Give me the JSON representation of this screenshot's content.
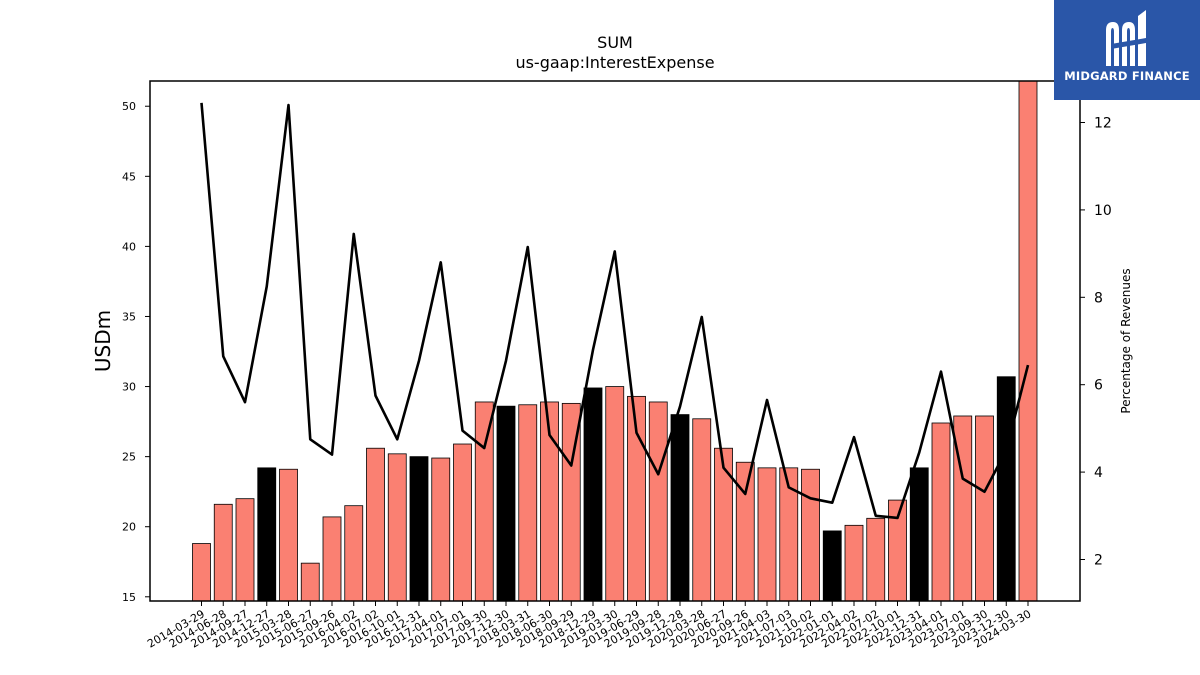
{
  "chart_data": {
    "type": "bar",
    "title": "SUM",
    "subtitle": "us-gaap:InterestExpense",
    "ylabel": "USDm",
    "y2label": "Percentage of Revenues",
    "ylim": [
      14.7,
      51.8
    ],
    "y2lim": [
      1.05,
      12.95
    ],
    "yticks": [
      15,
      20,
      25,
      30,
      35,
      40,
      45,
      50
    ],
    "y2ticks": [
      2,
      4,
      6,
      8,
      10,
      12
    ],
    "grid": false,
    "categories": [
      "2014-03-29",
      "2014-06-28",
      "2014-09-27",
      "2014-12-27",
      "2015-03-28",
      "2015-06-27",
      "2015-09-26",
      "2016-04-02",
      "2016-07-02",
      "2016-10-01",
      "2016-12-31",
      "2017-04-01",
      "2017-07-01",
      "2017-09-30",
      "2017-12-30",
      "2018-03-31",
      "2018-06-30",
      "2018-09-29",
      "2018-12-29",
      "2019-03-30",
      "2019-06-29",
      "2019-09-28",
      "2019-12-28",
      "2020-03-28",
      "2020-06-27",
      "2020-09-26",
      "2021-04-03",
      "2021-07-03",
      "2021-10-02",
      "2022-01-01",
      "2022-04-02",
      "2022-07-02",
      "2022-10-01",
      "2022-12-31",
      "2023-04-01",
      "2023-07-01",
      "2023-09-30",
      "2023-12-30",
      "2024-03-30"
    ],
    "series": [
      {
        "type": "bar",
        "values": [
          18.8,
          21.6,
          22.0,
          24.2,
          24.1,
          17.4,
          20.7,
          21.5,
          25.6,
          25.2,
          25.0,
          24.9,
          25.9,
          28.9,
          28.6,
          28.7,
          28.9,
          28.8,
          29.9,
          30.0,
          29.3,
          28.9,
          28.0,
          27.7,
          25.6,
          24.6,
          24.2,
          24.2,
          24.1,
          19.7,
          20.1,
          20.6,
          21.9,
          24.2,
          27.4,
          27.9,
          27.9,
          30.7,
          51.8
        ],
        "highlight": [
          false,
          false,
          false,
          true,
          false,
          false,
          false,
          false,
          false,
          false,
          true,
          false,
          false,
          false,
          true,
          false,
          false,
          false,
          true,
          false,
          false,
          false,
          true,
          false,
          false,
          false,
          false,
          false,
          false,
          true,
          false,
          false,
          false,
          true,
          false,
          false,
          false,
          true,
          false
        ],
        "color": "#fa8072",
        "highlight_color": "#000000"
      },
      {
        "type": "line",
        "axis": "right",
        "values": [
          12.45,
          6.65,
          5.6,
          8.25,
          12.4,
          4.75,
          4.4,
          9.45,
          5.75,
          4.75,
          6.55,
          8.8,
          4.95,
          4.55,
          6.55,
          9.15,
          4.85,
          4.15,
          6.8,
          9.05,
          4.9,
          3.95,
          5.5,
          7.55,
          4.1,
          3.5,
          5.65,
          3.65,
          3.4,
          3.3,
          4.8,
          3.0,
          2.95,
          4.45,
          6.3,
          3.85,
          3.55,
          4.5,
          6.45
        ],
        "color": "#000000"
      }
    ]
  },
  "logo": {
    "text": "MIDGARD FINANCE",
    "color": "#2a56a8"
  }
}
